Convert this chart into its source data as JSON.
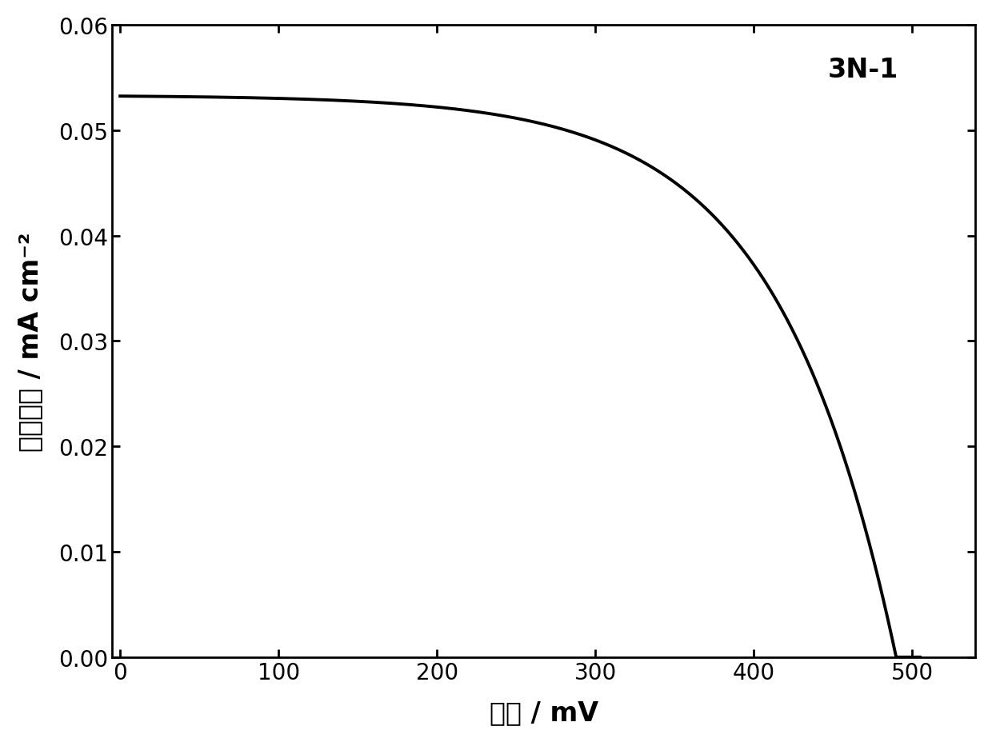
{
  "label": "3N-1",
  "xlabel": "电压 / mV",
  "ylabel": "电流密度 / mA cm⁻²",
  "xlim": [
    -5,
    540
  ],
  "ylim": [
    0,
    0.06
  ],
  "xticks": [
    0,
    100,
    200,
    300,
    400,
    500
  ],
  "yticks": [
    0.0,
    0.01,
    0.02,
    0.03,
    0.04,
    0.05,
    0.06
  ],
  "line_color": "#000000",
  "line_width": 2.8,
  "background_color": "#ffffff",
  "Jsc": 0.0533,
  "Voc": 490,
  "Vt": 75.0,
  "label_fontsize": 24,
  "tick_fontsize": 20,
  "annotation_fontsize": 24
}
